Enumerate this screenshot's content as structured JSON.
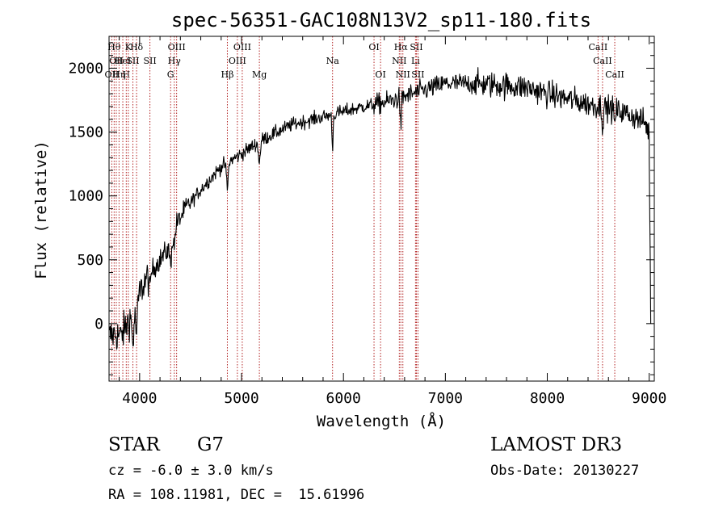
{
  "chart_data": {
    "type": "line",
    "title": "spec-56351-GAC108N13V2_sp11-180.fits",
    "xlabel": "Wavelength (Å)",
    "ylabel": "Flux (relative)",
    "xlim": [
      3700,
      9050
    ],
    "ylim": [
      -450,
      2250
    ],
    "xticks": [
      4000,
      5000,
      6000,
      7000,
      8000,
      9000
    ],
    "yticks": [
      0,
      500,
      1000,
      1500,
      2000
    ],
    "xtick_labels": [
      "4000",
      "5000",
      "6000",
      "7000",
      "8000",
      "9000"
    ],
    "ytick_labels": [
      "0",
      "500",
      "1000",
      "1500",
      "2000"
    ],
    "line_color": "#000000",
    "marker_color": "#b22222",
    "continuum_knots": {
      "x": [
        3700,
        3760,
        3820,
        3900,
        3980,
        4050,
        4150,
        4250,
        4300,
        4350,
        4450,
        4600,
        4800,
        5000,
        5200,
        5500,
        5800,
        6000,
        6200,
        6400,
        6600,
        6800,
        7000,
        7200,
        7500,
        7800,
        8000,
        8200,
        8400,
        8600,
        8800,
        8950,
        9000
      ],
      "y": [
        -100,
        -80,
        -100,
        40,
        200,
        330,
        450,
        550,
        600,
        760,
        900,
        1050,
        1230,
        1330,
        1440,
        1560,
        1620,
        1660,
        1700,
        1730,
        1780,
        1830,
        1880,
        1880,
        1870,
        1850,
        1800,
        1760,
        1720,
        1690,
        1640,
        1580,
        1500
      ]
    },
    "tail": {
      "x": [
        9000,
        9005,
        9010,
        9015
      ],
      "y": [
        1300,
        900,
        500,
        0
      ]
    },
    "markers": [
      {
        "wl": 3727,
        "row": 2,
        "label": "OII"
      },
      {
        "wl": 3750,
        "row": 0,
        "label": "Hθ"
      },
      {
        "wl": 3771,
        "row": 1,
        "label": "OII"
      },
      {
        "wl": 3798,
        "row": 2,
        "label": "Hη"
      },
      {
        "wl": 3835,
        "row": 1,
        "label": "HeI"
      },
      {
        "wl": 3869,
        "row": 2,
        "label": "H"
      },
      {
        "wl": 3889,
        "row": 0,
        "label": "K"
      },
      {
        "wl": 3934,
        "row": 1,
        "label": "SII"
      },
      {
        "wl": 3970,
        "row": 0,
        "label": "Hδ"
      },
      {
        "wl": 4101,
        "row": 1,
        "label": "SII"
      },
      {
        "wl": 4304,
        "row": 2,
        "label": "G"
      },
      {
        "wl": 4340,
        "row": 1,
        "label": "Hγ"
      },
      {
        "wl": 4363,
        "row": 0,
        "label": "OIII"
      },
      {
        "wl": 4861,
        "row": 2,
        "label": "Hβ"
      },
      {
        "wl": 4959,
        "row": 1,
        "label": "OIII"
      },
      {
        "wl": 5007,
        "row": 0,
        "label": "OIII"
      },
      {
        "wl": 5175,
        "row": 2,
        "label": "Mg"
      },
      {
        "wl": 5893,
        "row": 1,
        "label": "Na"
      },
      {
        "wl": 6300,
        "row": 0,
        "label": "OI"
      },
      {
        "wl": 6364,
        "row": 2,
        "label": "OI"
      },
      {
        "wl": 6548,
        "row": 1,
        "label": "NII"
      },
      {
        "wl": 6563,
        "row": 0,
        "label": "Hα"
      },
      {
        "wl": 6583,
        "row": 2,
        "label": "NII"
      },
      {
        "wl": 6707,
        "row": 1,
        "label": "Li"
      },
      {
        "wl": 6716,
        "row": 0,
        "label": "SII"
      },
      {
        "wl": 6731,
        "row": 2,
        "label": "SII"
      },
      {
        "wl": 8498,
        "row": 0,
        "label": "CaII"
      },
      {
        "wl": 8542,
        "row": 1,
        "label": "CaII"
      },
      {
        "wl": 8662,
        "row": 2,
        "label": "CaII"
      }
    ]
  },
  "info": {
    "object_class": "STAR",
    "subclass": "G7",
    "cz": "cz = -6.0 ± 3.0 km/s",
    "coords": "RA = 108.11981, DEC =  15.61996",
    "survey": "LAMOST DR3",
    "obs_date": "Obs-Date: 20130227"
  }
}
